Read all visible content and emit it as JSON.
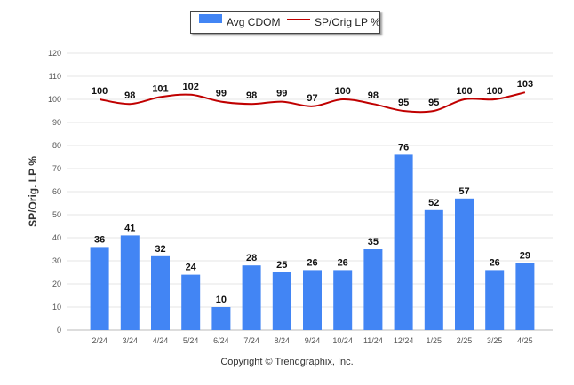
{
  "chart_data": {
    "type": "bar",
    "categories": [
      "2/24",
      "3/24",
      "4/24",
      "5/24",
      "6/24",
      "7/24",
      "8/24",
      "9/24",
      "10/24",
      "11/24",
      "12/24",
      "1/25",
      "2/25",
      "3/25",
      "4/25"
    ],
    "series": [
      {
        "name": "Avg CDOM",
        "type": "bar",
        "color": "#4285f4",
        "values": [
          36,
          41,
          32,
          24,
          10,
          28,
          25,
          26,
          26,
          35,
          76,
          52,
          57,
          26,
          29
        ]
      },
      {
        "name": "SP/Orig LP %",
        "type": "line",
        "color": "#c00000",
        "values": [
          100,
          98,
          101,
          102,
          99,
          98,
          99,
          97,
          100,
          98,
          95,
          95,
          100,
          100,
          103
        ]
      }
    ],
    "ylabel": "SP/Orig. LP %",
    "ylim": [
      0,
      120
    ],
    "yticks": [
      0,
      10,
      20,
      30,
      40,
      50,
      60,
      70,
      80,
      90,
      100,
      110,
      120
    ],
    "grid": true,
    "legend_position": "top-center"
  },
  "footer": {
    "copyright": "Copyright © Trendgraphix, Inc."
  }
}
